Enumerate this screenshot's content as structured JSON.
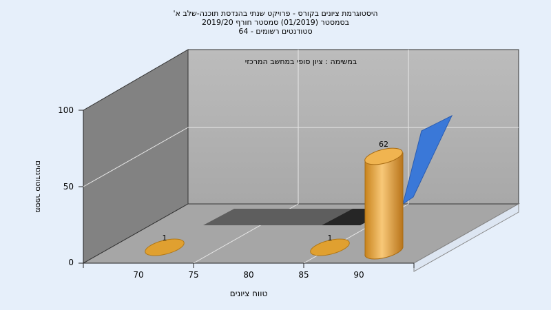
{
  "title_lines": [
    "היסטוגרמת ציונים בקורס - פרויקט שנתי בהנדסת תוכנה-שלב א'",
    "בסמסטר  (01/2019)  סמסטר חורף 2019/20",
    "סטודנטים רשומים - 64"
  ],
  "annotation": "במשימה : ציון סופי במחשב המרכזי",
  "chart_data": {
    "type": "bar",
    "x_tick_labels": [
      "70",
      "75",
      "80",
      "85",
      "90"
    ],
    "y_tick_labels": [
      "0",
      "50",
      "100"
    ],
    "ylim": [
      0,
      100
    ],
    "grid": true,
    "xlabel": "טווח ציונים",
    "ylabel": "מספר סטודנטים",
    "bars": [
      {
        "x": 72.5,
        "value": 1,
        "label": "1"
      },
      {
        "x": 87.5,
        "value": 1,
        "label": "1"
      },
      {
        "x": 92.5,
        "value": 62,
        "label": "62"
      }
    ],
    "colors": {
      "bar": "#e0a030",
      "line": "#3a78d8",
      "background": "#e6effa"
    }
  }
}
